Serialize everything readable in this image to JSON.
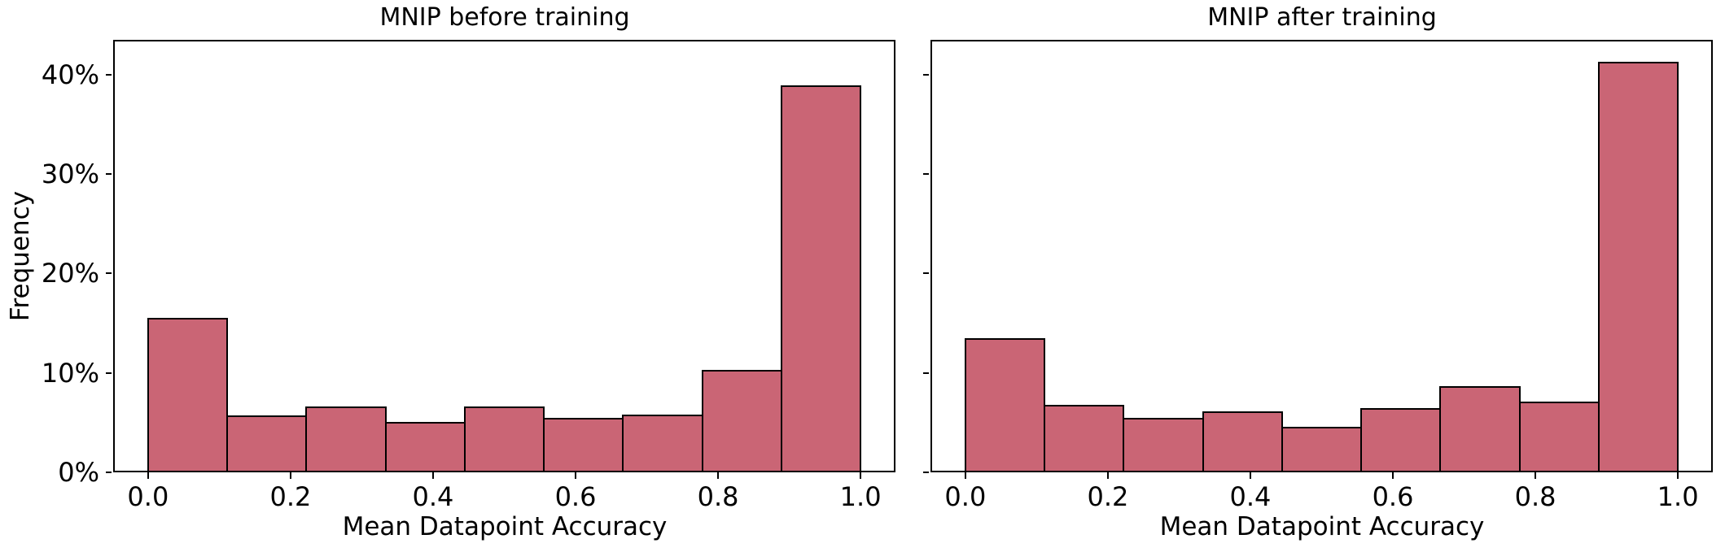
{
  "colors": {
    "bar_fill": "#ca6575",
    "bar_edge": "#000000",
    "axis": "#000000",
    "background": "#ffffff",
    "text": "#000000"
  },
  "chart_data": [
    {
      "type": "bar",
      "subtype": "histogram",
      "title": "MNIP before training",
      "xlabel": "Mean Datapoint Accuracy",
      "ylabel": "Frequency",
      "bins": {
        "start": 0.0,
        "end": 1.0,
        "count": 9
      },
      "values_percent": [
        15.5,
        5.7,
        6.6,
        5.1,
        6.6,
        5.5,
        5.8,
        10.3,
        38.9
      ],
      "x_tick_values": [
        0.0,
        0.2,
        0.4,
        0.6,
        0.8,
        1.0
      ],
      "x_tick_labels": [
        "0.0",
        "0.2",
        "0.4",
        "0.6",
        "0.8",
        "1.0"
      ],
      "y_tick_values": [
        0,
        10,
        20,
        30,
        40
      ],
      "y_tick_labels": [
        "0%",
        "10%",
        "20%",
        "30%",
        "40%"
      ],
      "show_y_tick_labels": true,
      "xlim": [
        -0.049,
        1.049
      ],
      "ylim": [
        0,
        43.5
      ],
      "grid": false,
      "legend": null
    },
    {
      "type": "bar",
      "subtype": "histogram",
      "title": "MNIP after training",
      "xlabel": "Mean Datapoint Accuracy",
      "ylabel": "",
      "bins": {
        "start": 0.0,
        "end": 1.0,
        "count": 9
      },
      "values_percent": [
        13.5,
        6.8,
        5.5,
        6.1,
        4.6,
        6.5,
        8.7,
        7.1,
        41.3
      ],
      "x_tick_values": [
        0.0,
        0.2,
        0.4,
        0.6,
        0.8,
        1.0
      ],
      "x_tick_labels": [
        "0.0",
        "0.2",
        "0.4",
        "0.6",
        "0.8",
        "1.0"
      ],
      "y_tick_values": [
        0,
        10,
        20,
        30,
        40
      ],
      "y_tick_labels": [
        "0%",
        "10%",
        "20%",
        "30%",
        "40%"
      ],
      "show_y_tick_labels": false,
      "xlim": [
        -0.049,
        1.049
      ],
      "ylim": [
        0,
        43.5
      ],
      "grid": false,
      "legend": null
    }
  ]
}
